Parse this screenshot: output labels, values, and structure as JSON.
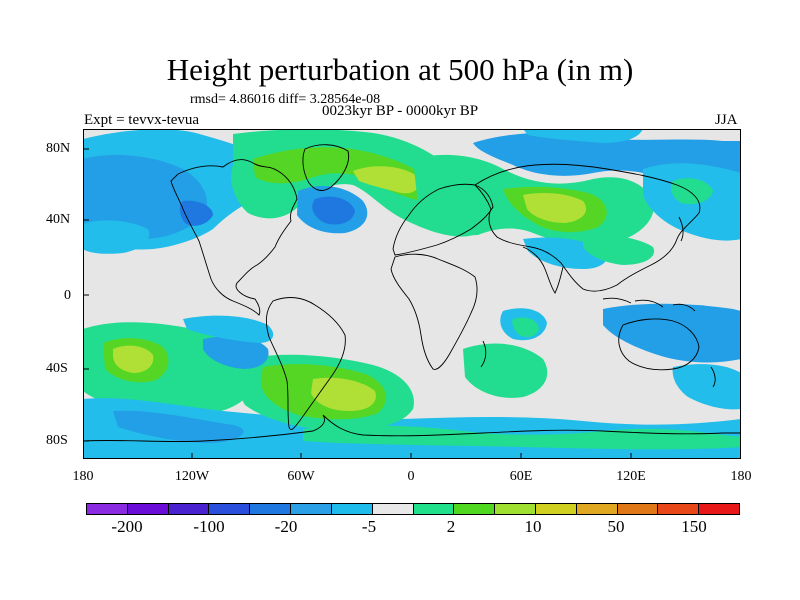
{
  "figure": {
    "title": "Height perturbation at 500 hPa (in m)",
    "stats": "rmsd= 4.86016 diff= 3.28564e-08",
    "period": "0023kyr BP - 0000kyr BP",
    "expt": "Expt = tevvx-tevua",
    "season": "JJA"
  },
  "axes": {
    "y_ticks": [
      "80N",
      "40N",
      "0",
      "40S",
      "80S"
    ],
    "x_ticks": [
      "180",
      "120W",
      "60W",
      "0",
      "60E",
      "120E",
      "180"
    ]
  },
  "colorbar": {
    "colors": [
      "#8a2be2",
      "#6a0dd8",
      "#4b22d0",
      "#2a4fdc",
      "#1e78e0",
      "#2aa0e6",
      "#1ebcec",
      "#e8e8e8",
      "#20e08c",
      "#50d820",
      "#a0e030",
      "#d0d020",
      "#e0a820",
      "#e07818",
      "#e84818",
      "#e81818"
    ],
    "labels": [
      "-200",
      "-100",
      "-20",
      "-5",
      "2",
      "10",
      "50",
      "150"
    ]
  },
  "map": {
    "background_color": "#e6e6e6",
    "contour_colors": {
      "light_blue": "#22bdea",
      "blue": "#229fe6",
      "dark_blue": "#1e78e0",
      "teal": "#22dd8f",
      "green": "#56d624",
      "yellow_green": "#b0e036"
    }
  }
}
